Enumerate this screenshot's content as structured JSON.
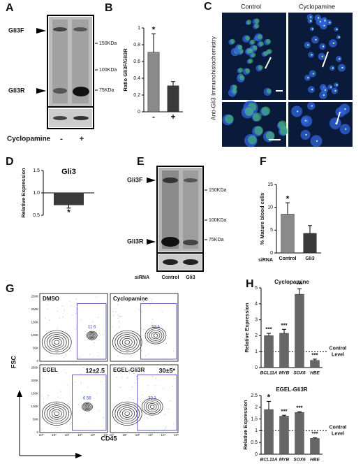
{
  "figure": {
    "panel_labels": [
      "A",
      "B",
      "C",
      "D",
      "E",
      "F",
      "G",
      "H"
    ],
    "blot_a": {
      "bands": [
        "Gli3F",
        "Gli3R"
      ],
      "markers": [
        "150KDa",
        "100KDa",
        "75KDa"
      ],
      "treatment": "Cyclopamine",
      "lanes": [
        "-",
        "+"
      ]
    },
    "images_c": {
      "columns": [
        "Control",
        "Cyclopamine"
      ],
      "side_label": "Anti-Gli3 Immunohistochemistry"
    },
    "blot_e": {
      "bands": [
        "Gli3F",
        "Gli3R"
      ],
      "markers": [
        "150KDa",
        "100KDa",
        "75KDa"
      ],
      "treatment": "siRNA",
      "lanes": [
        "Control",
        "Gli3"
      ]
    },
    "flow_g": {
      "plots": [
        {
          "title": "DMSO",
          "gate": "11.6"
        },
        {
          "title": "Cyclopamine",
          "gate": "52.4"
        },
        {
          "title": "EGEL",
          "gate": "6.58",
          "summary": "12±2.5"
        },
        {
          "title": "EGEL-Gli3R",
          "gate": "32.1",
          "summary": "30±5*"
        }
      ],
      "y_axis": "FSC",
      "x_axis": "CD45",
      "y_ticks": [
        "0",
        "50K",
        "100K",
        "150K",
        "200K",
        "250K"
      ],
      "x_ticks": [
        "10⁰",
        "10¹",
        "10²",
        "10³",
        "10⁴",
        "10⁵"
      ]
    }
  },
  "chart_data": [
    {
      "type": "bar",
      "ylabel": "Ratio Gli3F/Gli3R",
      "categories": [
        "-",
        "+"
      ],
      "values": [
        0.71,
        0.31
      ],
      "errors": [
        0.22,
        0.05
      ],
      "annotations": [
        "*",
        null
      ],
      "colors": [
        "#8a8a8a",
        "#3a3a3a"
      ],
      "ylim": [
        0,
        1
      ],
      "yticks": [
        0,
        0.2,
        0.4,
        0.6,
        0.8,
        1
      ]
    },
    {
      "type": "bar",
      "title": "Gli3",
      "ylabel": "Relative Expression",
      "categories": [
        null
      ],
      "values": [
        0.73
      ],
      "errors": [
        0.07
      ],
      "annotations": [
        "*"
      ],
      "colors": [
        "#3a3a3a"
      ],
      "ylim": [
        0.5,
        1.5
      ],
      "yticks": [
        0.5,
        {
          "value": 1,
          "label": "1.0"
        },
        1.5
      ],
      "x_axis_at": 1
    },
    {
      "type": "bar",
      "ylabel": "% Mature blood cells",
      "xlabel": "siRNA",
      "categories": [
        "Control",
        "Gli3"
      ],
      "values": [
        8.5,
        4.3
      ],
      "errors": [
        2.5,
        1.7
      ],
      "annotations": [
        "*",
        null
      ],
      "colors": [
        "#8a8a8a",
        "#3a3a3a"
      ],
      "ylim": [
        0,
        15
      ],
      "yticks": [
        0,
        5,
        10,
        15
      ]
    },
    {
      "type": "bar",
      "title": "Cyclopamine",
      "ylabel": "Relative Expression",
      "categories": [
        "BCL11A",
        "MYB",
        "SOX6",
        "HBE"
      ],
      "values": [
        2.0,
        2.15,
        4.6,
        0.45
      ],
      "errors": [
        0.15,
        0.25,
        0.35,
        0.08
      ],
      "annotations": [
        "***",
        "***",
        "***",
        "***"
      ],
      "colors": [
        "#666666",
        "#666666",
        "#666666",
        "#666666"
      ],
      "ylim": [
        0,
        5
      ],
      "yticks": [
        0,
        1,
        2,
        3,
        4,
        5
      ],
      "reference_line": 1,
      "reference_label": [
        "Control",
        "Level"
      ]
    },
    {
      "type": "bar",
      "title": "EGEL-Gli3R",
      "ylabel": "Relative Expression",
      "categories": [
        "BCL11A",
        "MYB",
        "SOX6",
        "HBE"
      ],
      "values": [
        1.9,
        1.62,
        1.78,
        0.67
      ],
      "errors": [
        0.35,
        0.04,
        0.03,
        0.03
      ],
      "annotations": [
        "*",
        "***",
        "***",
        "***"
      ],
      "colors": [
        "#666666",
        "#666666",
        "#666666",
        "#666666"
      ],
      "ylim": [
        0,
        2.5
      ],
      "yticks": [
        0,
        0.5,
        1,
        1.5,
        2,
        2.5
      ],
      "reference_line": 1,
      "reference_label": [
        "Control",
        "Level"
      ]
    }
  ]
}
